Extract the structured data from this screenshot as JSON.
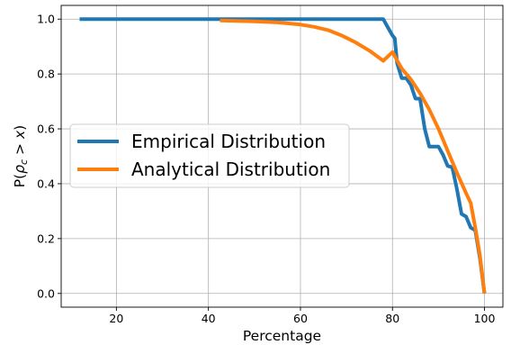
{
  "chart_data": {
    "type": "line",
    "xlabel": "Percentage",
    "ylabel": "P(ρ_c > x)",
    "ylabel_parts": {
      "prefix": "P(",
      "symbol": "ρ",
      "subscript": "c",
      "relation": " > ",
      "variable": "x",
      "suffix": ")"
    },
    "xlim": [
      8,
      104
    ],
    "ylim": [
      -0.05,
      1.05
    ],
    "xticks": [
      20,
      40,
      60,
      80,
      100
    ],
    "yticks": [
      0.0,
      0.2,
      0.4,
      0.6,
      0.8,
      1.0
    ],
    "xtick_labels": [
      "20",
      "40",
      "60",
      "80",
      "100"
    ],
    "ytick_labels": [
      "0.0",
      "0.2",
      "0.4",
      "0.6",
      "0.8",
      "1.0"
    ],
    "grid": true,
    "legend_position": "center-left",
    "series": [
      {
        "name": "Empirical Distribution",
        "color": "#1f77b4",
        "x": [
          12,
          78,
          79,
          80,
          80.5,
          81,
          82,
          83,
          84,
          85,
          86,
          87,
          88,
          89,
          90,
          91,
          92,
          93,
          94,
          95,
          96,
          97,
          98,
          99,
          100
        ],
        "y": [
          1.0,
          1.0,
          0.97,
          0.94,
          0.93,
          0.84,
          0.785,
          0.785,
          0.76,
          0.71,
          0.71,
          0.6,
          0.535,
          0.535,
          0.535,
          0.505,
          0.465,
          0.46,
          0.38,
          0.29,
          0.28,
          0.24,
          0.23,
          0.13,
          0.0
        ]
      },
      {
        "name": "Analytical Distribution",
        "color": "#ff7f0e",
        "x": [
          42.5,
          50,
          55,
          60,
          63,
          66,
          69,
          72,
          75,
          78,
          80,
          82,
          84,
          86,
          88,
          90,
          92,
          94,
          96,
          97,
          98,
          99,
          100
        ],
        "y": [
          0.995,
          0.992,
          0.988,
          0.98,
          0.972,
          0.96,
          0.94,
          0.915,
          0.885,
          0.848,
          0.88,
          0.82,
          0.78,
          0.73,
          0.67,
          0.6,
          0.52,
          0.44,
          0.365,
          0.33,
          0.24,
          0.14,
          0.0
        ]
      }
    ]
  }
}
